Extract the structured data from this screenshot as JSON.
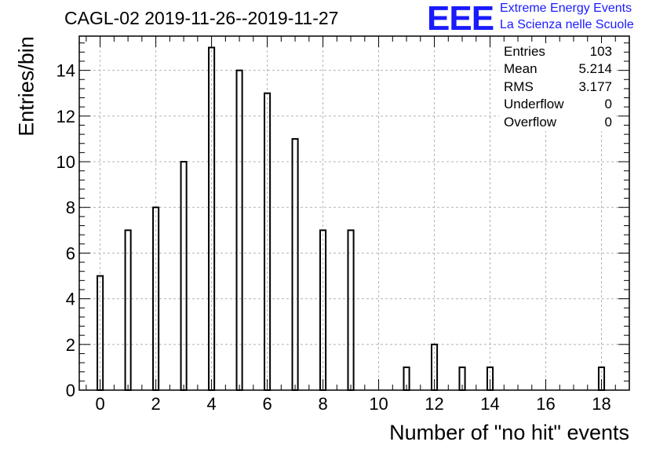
{
  "title": "CAGL-02 2019-11-26--2019-11-27",
  "logo": {
    "letters": "EEE",
    "line1": "Extreme Energy Events",
    "line2": "La Scienza nelle Scuole",
    "color": "#1a1aff"
  },
  "stats": [
    {
      "label": "Entries",
      "value": "103"
    },
    {
      "label": "Mean",
      "value": "5.214"
    },
    {
      "label": "RMS",
      "value": "3.177"
    },
    {
      "label": "Underflow",
      "value": "0"
    },
    {
      "label": "Overflow",
      "value": "0"
    }
  ],
  "chart_data": {
    "type": "bar",
    "subtype": "histogram",
    "title": "CAGL-02 2019-11-26--2019-11-27",
    "xlabel": "Number of \"no hit\" events",
    "ylabel": "Entries/bin",
    "xlim": [
      -0.75,
      19
    ],
    "ylim": [
      0,
      15.5
    ],
    "bin_width": 0.2,
    "grid": true,
    "x_ticks": [
      0,
      2,
      4,
      6,
      8,
      10,
      12,
      14,
      16,
      18
    ],
    "y_ticks": [
      0,
      2,
      4,
      6,
      8,
      10,
      12,
      14
    ],
    "categories": [
      0,
      1,
      2,
      3,
      4,
      5,
      6,
      7,
      8,
      9,
      11,
      12,
      13,
      14,
      18
    ],
    "values": [
      5,
      7,
      8,
      10,
      15,
      14,
      13,
      11,
      7,
      7,
      1,
      2,
      1,
      1,
      1
    ]
  }
}
